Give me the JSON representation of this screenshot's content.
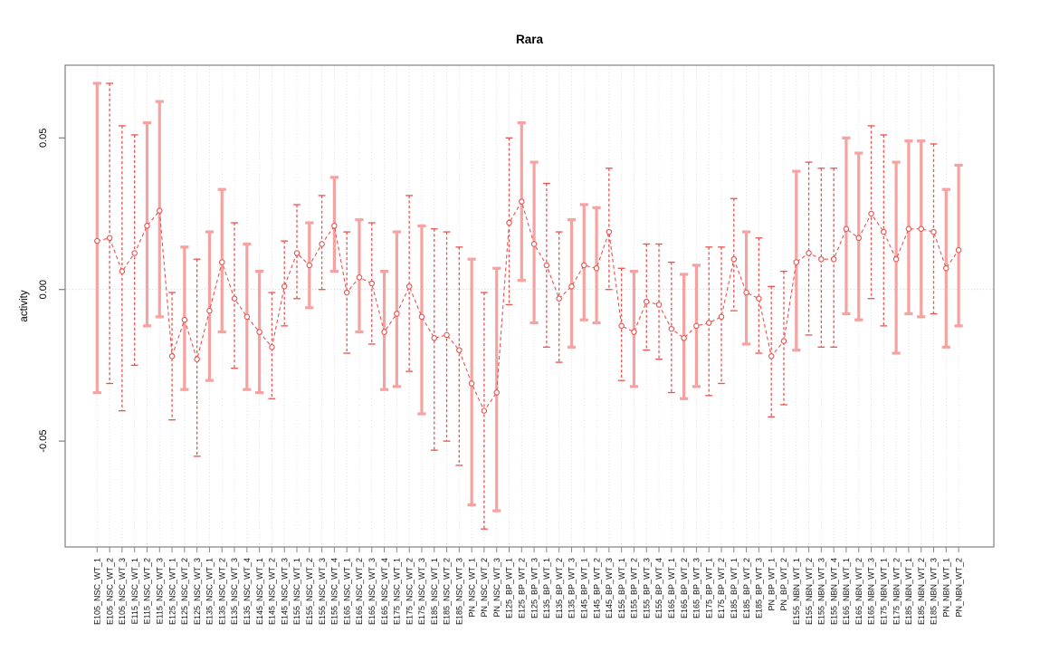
{
  "title": "Rara",
  "colors": {
    "bar_wide": "#f6a2a0",
    "bar_thin": "#e9534f",
    "series_line": "#e9534f",
    "point_stroke": "#e9534f",
    "grid": "#dcdcdc",
    "zero_line": "#c8c8c8",
    "axis_box": "#808080",
    "tick": "#888888",
    "background": "#ffffff"
  },
  "chart_data": {
    "type": "line",
    "title": "Rara",
    "xlabel": "",
    "ylabel": "activity",
    "ylim": [
      -0.085,
      0.074
    ],
    "yticks": [
      -0.05,
      0,
      0.05
    ],
    "ytick_labels": [
      "-0.05",
      "0.00",
      "0.05"
    ],
    "grid": "vertical dotted gridline at every category; dotted horizontal line at y=0",
    "legend_position": "none",
    "marker": "open-circle",
    "line_style": "dashed",
    "categories": [
      "E105_NSC_WT_1",
      "E105_NSC_WT_2",
      "E105_NSC_WT_3",
      "E115_NSC_WT_1",
      "E115_NSC_WT_2",
      "E115_NSC_WT_3",
      "E125_NSC_WT_1",
      "E125_NSC_WT_2",
      "E125_NSC_WT_3",
      "E135_NSC_WT_1",
      "E135_NSC_WT_2",
      "E135_NSC_WT_3",
      "E135_NSC_WT_4",
      "E145_NSC_WT_1",
      "E145_NSC_WT_2",
      "E145_NSC_WT_3",
      "E155_NSC_WT_1",
      "E155_NSC_WT_2",
      "E155_NSC_WT_3",
      "E155_NSC_WT_4",
      "E165_NSC_WT_1",
      "E165_NSC_WT_2",
      "E165_NSC_WT_3",
      "E165_NSC_WT_4",
      "E175_NSC_WT_1",
      "E175_NSC_WT_2",
      "E175_NSC_WT_3",
      "E185_NSC_WT_1",
      "E185_NSC_WT_2",
      "E185_NSC_WT_3",
      "PN_NSC_WT_1",
      "PN_NSC_WT_2",
      "PN_NSC_WT_3",
      "E125_BP_WT_1",
      "E125_BP_WT_2",
      "E125_BP_WT_3",
      "E135_BP_WT_1",
      "E135_BP_WT_2",
      "E135_BP_WT_3",
      "E145_BP_WT_1",
      "E145_BP_WT_2",
      "E145_BP_WT_3",
      "E155_BP_WT_1",
      "E155_BP_WT_2",
      "E155_BP_WT_3",
      "E155_BP_WT_4",
      "E165_BP_WT_1",
      "E165_BP_WT_2",
      "E165_BP_WT_3",
      "E175_BP_WT_1",
      "E175_BP_WT_2",
      "E185_BP_WT_1",
      "E185_BP_WT_2",
      "E185_BP_WT_3",
      "PN_BP_WT_1",
      "PN_BP_WT_2",
      "E155_NBN_WT_1",
      "E155_NBN_WT_2",
      "E155_NBN_WT_3",
      "E155_NBN_WT_4",
      "E165_NBN_WT_1",
      "E165_NBN_WT_2",
      "E165_NBN_WT_3",
      "E175_NBN_WT_1",
      "E175_NBN_WT_2",
      "E185_NBN_WT_1",
      "E185_NBN_WT_2",
      "E185_NBN_WT_3",
      "PN_NBN_WT_1",
      "PN_NBN_WT_2"
    ],
    "series": [
      {
        "name": "activity",
        "values": [
          0.016,
          0.017,
          0.006,
          0.012,
          0.021,
          0.026,
          -0.022,
          -0.01,
          -0.023,
          -0.007,
          0.009,
          -0.003,
          -0.009,
          -0.014,
          -0.019,
          0.001,
          0.012,
          0.008,
          0.015,
          0.021,
          -0.001,
          0.004,
          0.002,
          -0.014,
          -0.008,
          0.001,
          -0.009,
          -0.016,
          -0.015,
          -0.02,
          -0.031,
          -0.04,
          -0.034,
          0.022,
          0.029,
          0.015,
          0.008,
          -0.003,
          0.001,
          0.008,
          0.007,
          0.019,
          -0.012,
          -0.014,
          -0.004,
          -0.005,
          -0.013,
          -0.016,
          -0.012,
          -0.011,
          -0.009,
          0.01,
          -0.001,
          -0.003,
          -0.022,
          -0.017,
          0.009,
          0.012,
          0.01,
          0.01,
          0.02,
          0.017,
          0.025,
          0.019,
          0.01,
          0.02,
          0.02,
          0.019,
          0.007,
          0.013
        ],
        "lower": [
          -0.034,
          -0.031,
          -0.04,
          -0.025,
          -0.012,
          -0.009,
          -0.043,
          -0.033,
          -0.055,
          -0.03,
          -0.014,
          -0.026,
          -0.033,
          -0.034,
          -0.036,
          -0.012,
          -0.003,
          -0.006,
          0.0,
          0.006,
          -0.021,
          -0.014,
          -0.018,
          -0.033,
          -0.032,
          -0.027,
          -0.041,
          -0.053,
          -0.05,
          -0.058,
          -0.071,
          -0.079,
          -0.073,
          -0.005,
          0.003,
          -0.011,
          -0.019,
          -0.024,
          -0.019,
          -0.01,
          -0.011,
          0.0,
          -0.03,
          -0.032,
          -0.02,
          -0.023,
          -0.034,
          -0.036,
          -0.032,
          -0.035,
          -0.031,
          -0.007,
          -0.018,
          -0.021,
          -0.042,
          -0.038,
          -0.02,
          -0.015,
          -0.019,
          -0.019,
          -0.008,
          -0.01,
          -0.003,
          -0.012,
          -0.021,
          -0.008,
          -0.009,
          -0.008,
          -0.019,
          -0.012
        ],
        "upper": [
          0.068,
          0.068,
          0.054,
          0.051,
          0.055,
          0.062,
          -0.001,
          0.014,
          0.01,
          0.019,
          0.033,
          0.022,
          0.015,
          0.006,
          -0.001,
          0.016,
          0.028,
          0.022,
          0.031,
          0.037,
          0.019,
          0.023,
          0.022,
          0.006,
          0.019,
          0.031,
          0.021,
          0.02,
          0.019,
          0.014,
          0.01,
          -0.001,
          0.007,
          0.05,
          0.055,
          0.042,
          0.035,
          0.019,
          0.023,
          0.028,
          0.027,
          0.04,
          0.007,
          0.006,
          0.015,
          0.015,
          0.009,
          0.005,
          0.008,
          0.014,
          0.014,
          0.03,
          0.019,
          0.017,
          0.001,
          0.006,
          0.039,
          0.042,
          0.04,
          0.04,
          0.05,
          0.045,
          0.054,
          0.051,
          0.042,
          0.049,
          0.049,
          0.048,
          0.033,
          0.041
        ],
        "bar_style": [
          "wide",
          "thin",
          "thin",
          "thin",
          "wide",
          "wide",
          "thin",
          "wide",
          "thin",
          "wide",
          "wide",
          "thin",
          "wide",
          "wide",
          "thin",
          "thin",
          "thin",
          "wide",
          "thin",
          "wide",
          "thin",
          "wide",
          "thin",
          "wide",
          "wide",
          "thin",
          "wide",
          "thin",
          "thin",
          "thin",
          "wide",
          "thin",
          "wide",
          "thin",
          "wide",
          "wide",
          "thin",
          "thin",
          "wide",
          "wide",
          "wide",
          "thin",
          "thin",
          "wide",
          "thin",
          "thin",
          "thin",
          "wide",
          "wide",
          "thin",
          "thin",
          "thin",
          "wide",
          "thin",
          "thin",
          "thin",
          "wide",
          "thin",
          "thin",
          "thin",
          "wide",
          "wide",
          "thin",
          "thin",
          "wide",
          "wide",
          "wide",
          "thin",
          "wide",
          "wide"
        ]
      }
    ]
  }
}
